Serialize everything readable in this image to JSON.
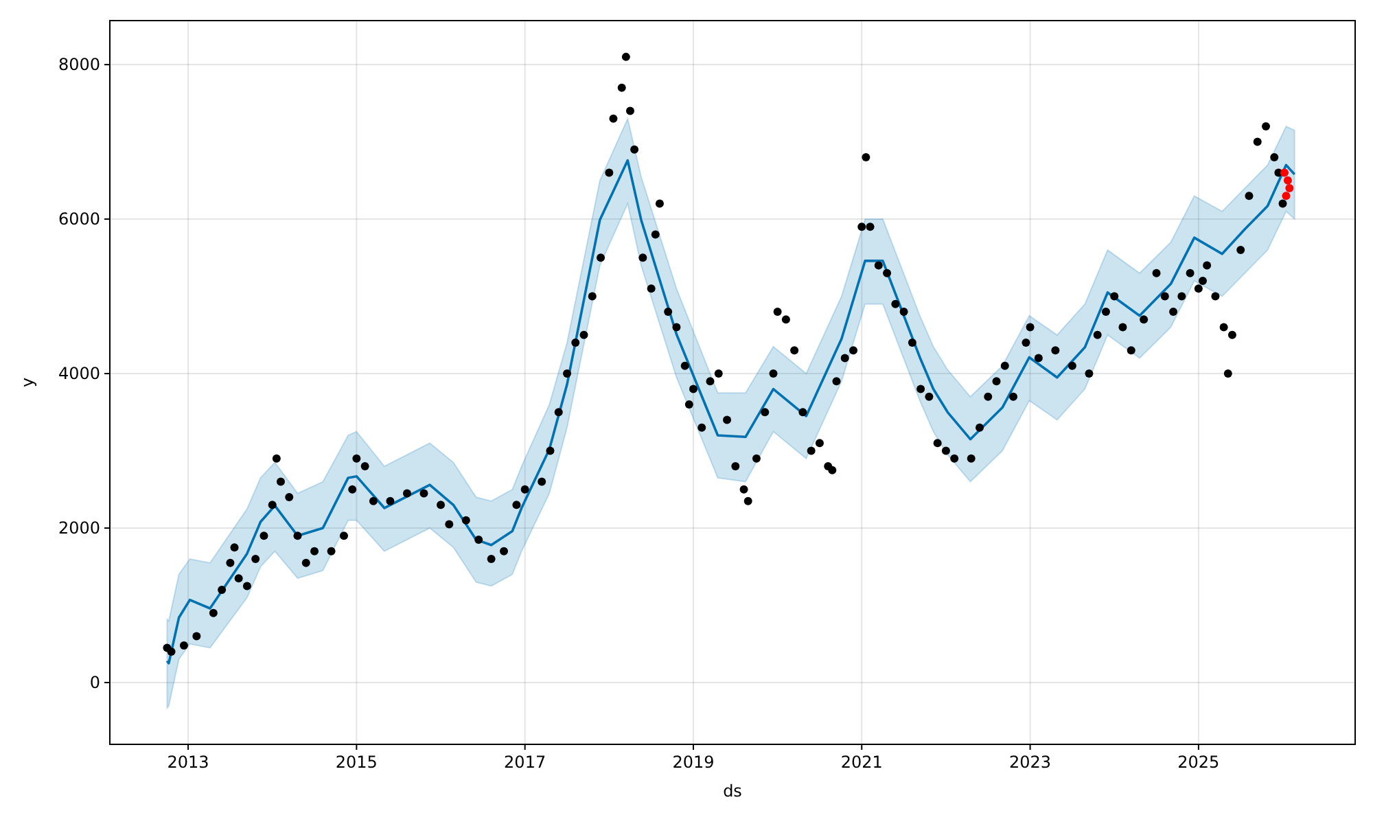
{
  "chart_data": {
    "type": "scatter",
    "xlabel": "ds",
    "ylabel": "y",
    "xlim": [
      2012.07,
      2026.86
    ],
    "xticks": [
      2013,
      2015,
      2017,
      2019,
      2021,
      2023,
      2025
    ],
    "ylim": [
      -800,
      8570
    ],
    "yticks": [
      0,
      2000,
      4000,
      6000,
      8000
    ],
    "grid": true,
    "marker": "circle",
    "series": [
      {
        "type": "line",
        "color": "#0072b2",
        "marker": "none",
        "x": [
          2012.75,
          2012.77,
          2012.89,
          2013.02,
          2013.26,
          2013.7,
          2013.86,
          2014.03,
          2014.3,
          2014.6,
          2014.9,
          2015.0,
          2015.33,
          2015.87,
          2016.15,
          2016.42,
          2016.6,
          2016.85,
          2016.96,
          2017.29,
          2017.5,
          2017.89,
          2018.22,
          2018.38,
          2018.8,
          2019.29,
          2019.62,
          2019.95,
          2020.34,
          2020.76,
          2021.04,
          2021.25,
          2021.69,
          2021.85,
          2022.02,
          2022.29,
          2022.67,
          2022.99,
          2023.32,
          2023.65,
          2023.92,
          2024.3,
          2024.67,
          2024.95,
          2025.28,
          2025.55,
          2025.82,
          2026.04,
          2026.14
        ],
        "values": [
          280,
          250,
          840,
          1070,
          960,
          1670,
          2080,
          2290,
          1900,
          2000,
          2650,
          2670,
          2260,
          2560,
          2300,
          1850,
          1780,
          1960,
          2260,
          3020,
          3860,
          5990,
          6760,
          5990,
          4510,
          3200,
          3180,
          3800,
          3450,
          4450,
          5460,
          5460,
          4210,
          3800,
          3500,
          3150,
          3560,
          4210,
          3950,
          4340,
          5050,
          4750,
          5160,
          5760,
          5550,
          5870,
          6170,
          6700,
          6580
        ],
        "lower": [
          -330,
          -300,
          300,
          500,
          450,
          1100,
          1500,
          1700,
          1350,
          1450,
          2100,
          2100,
          1700,
          2000,
          1750,
          1300,
          1250,
          1400,
          1700,
          2450,
          3300,
          5400,
          6200,
          5400,
          3950,
          2650,
          2600,
          3250,
          2900,
          3900,
          4900,
          4900,
          3650,
          3250,
          2950,
          2600,
          3000,
          3650,
          3400,
          3800,
          4500,
          4200,
          4600,
          5200,
          5000,
          5300,
          5600,
          6100,
          6000
        ],
        "upper": [
          820,
          800,
          1400,
          1600,
          1550,
          2250,
          2650,
          2850,
          2450,
          2600,
          3200,
          3250,
          2800,
          3100,
          2850,
          2400,
          2350,
          2500,
          2800,
          3600,
          4400,
          6500,
          7300,
          6550,
          5100,
          3750,
          3750,
          4350,
          4000,
          5000,
          6000,
          6000,
          4750,
          4350,
          4050,
          3700,
          4100,
          4750,
          4500,
          4900,
          5600,
          5300,
          5700,
          6300,
          6100,
          6400,
          6700,
          7200,
          7150
        ]
      },
      {
        "color": "#000000",
        "x": [
          2012.75,
          2012.8,
          2012.95,
          2013.1,
          2013.3,
          2013.4,
          2013.5,
          2013.55,
          2013.6,
          2013.7,
          2013.8,
          2013.9,
          2014.0,
          2014.05,
          2014.1,
          2014.2,
          2014.3,
          2014.4,
          2014.5,
          2014.7,
          2014.85,
          2014.95,
          2015.0,
          2015.1,
          2015.2,
          2015.4,
          2015.6,
          2015.8,
          2016.0,
          2016.1,
          2016.3,
          2016.45,
          2016.6,
          2016.75,
          2016.9,
          2017.0,
          2017.2,
          2017.3,
          2017.4,
          2017.5,
          2017.6,
          2017.7,
          2017.8,
          2017.9,
          2018.0,
          2018.05,
          2018.15,
          2018.2,
          2018.25,
          2018.3,
          2018.4,
          2018.5,
          2018.55,
          2018.6,
          2018.7,
          2018.8,
          2018.9,
          2018.95,
          2019.0,
          2019.1,
          2019.2,
          2019.3,
          2019.4,
          2019.5,
          2019.6,
          2019.65,
          2019.75,
          2019.85,
          2019.95,
          2020.0,
          2020.1,
          2020.2,
          2020.3,
          2020.4,
          2020.5,
          2020.6,
          2020.65,
          2020.7,
          2020.8,
          2020.9,
          2021.0,
          2021.05,
          2021.1,
          2021.2,
          2021.3,
          2021.4,
          2021.5,
          2021.6,
          2021.7,
          2021.8,
          2021.9,
          2022.0,
          2022.1,
          2022.3,
          2022.4,
          2022.5,
          2022.6,
          2022.7,
          2022.8,
          2022.95,
          2023.0,
          2023.1,
          2023.3,
          2023.5,
          2023.7,
          2023.8,
          2023.9,
          2024.0,
          2024.1,
          2024.2,
          2024.35,
          2024.5,
          2024.6,
          2024.7,
          2024.8,
          2024.9,
          2025.0,
          2025.05,
          2025.1,
          2025.2,
          2025.3,
          2025.35,
          2025.4,
          2025.5,
          2025.6,
          2025.7,
          2025.8,
          2025.9,
          2025.95,
          2026.0
        ],
        "values": [
          450,
          400,
          480,
          600,
          900,
          1200,
          1550,
          1750,
          1350,
          1250,
          1600,
          1900,
          2300,
          2900,
          2600,
          2400,
          1900,
          1550,
          1700,
          1700,
          1900,
          2500,
          2900,
          2800,
          2350,
          2350,
          2450,
          2450,
          2300,
          2050,
          2100,
          1850,
          1600,
          1700,
          2300,
          2500,
          2600,
          3000,
          3500,
          4000,
          4400,
          4500,
          5000,
          5500,
          6600,
          7300,
          7700,
          8100,
          7400,
          6900,
          5500,
          5100,
          5800,
          6200,
          4800,
          4600,
          4100,
          3600,
          3800,
          3300,
          3900,
          4000,
          3400,
          2800,
          2500,
          2350,
          2900,
          3500,
          4000,
          4800,
          4700,
          4300,
          3500,
          3000,
          3100,
          2800,
          2750,
          3900,
          4200,
          4300,
          5900,
          6800,
          5900,
          5400,
          5300,
          4900,
          4800,
          4400,
          3800,
          3700,
          3100,
          3000,
          2900,
          2900,
          3300,
          3700,
          3900,
          4100,
          3700,
          4400,
          4600,
          4200,
          4300,
          4100,
          4000,
          4500,
          4800,
          5000,
          4600,
          4300,
          4700,
          5300,
          5000,
          4800,
          5000,
          5300,
          5100,
          5200,
          5400,
          5000,
          4600,
          4000,
          4500,
          5600,
          6300,
          7000,
          7200,
          6800,
          6600,
          6200
        ]
      },
      {
        "color": "#ff0000",
        "x": [
          2026.02,
          2026.04,
          2026.06,
          2026.08
        ],
        "values": [
          6600,
          6300,
          6500,
          6400
        ]
      }
    ]
  }
}
